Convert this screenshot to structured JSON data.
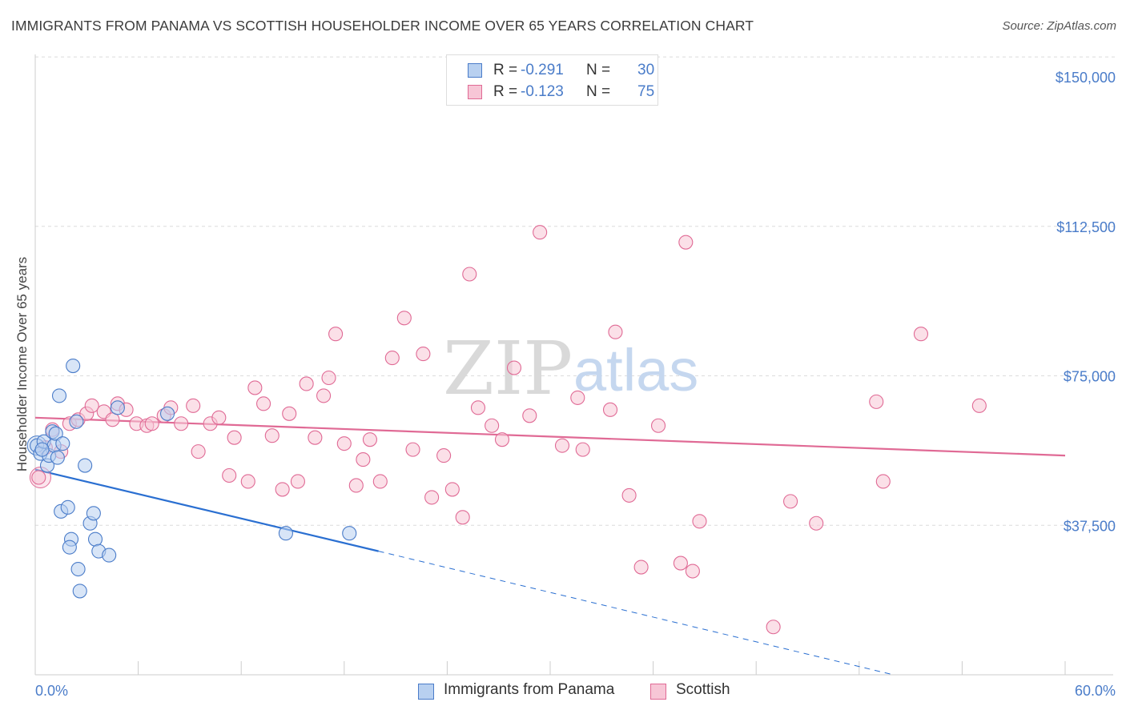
{
  "title": "IMMIGRANTS FROM PANAMA VS SCOTTISH HOUSEHOLDER INCOME OVER 65 YEARS CORRELATION CHART",
  "source": "Source: ZipAtlas.com",
  "watermark": {
    "part1": "ZIP",
    "part2": "atlas"
  },
  "colors": {
    "blue": "#4a7cc9",
    "blue_fill": "#b8d0f0",
    "blue_line": "#2a6fd1",
    "pink": "#e06a95",
    "pink_fill": "#f7c6d6",
    "pink_line": "#e06a95",
    "grid": "#dcdcdc"
  },
  "legend": {
    "r_label": "R =",
    "n_label": "N =",
    "series": [
      {
        "r": "-0.291",
        "n": "30"
      },
      {
        "r": "-0.123",
        "n": "75"
      }
    ]
  },
  "bottom_legend": [
    "Immigrants from Panama",
    "Scottish"
  ],
  "chart_data": {
    "type": "scatter",
    "title": "IMMIGRANTS FROM PANAMA VS SCOTTISH HOUSEHOLDER INCOME OVER 65 YEARS CORRELATION CHART",
    "xlabel": "",
    "ylabel": "Householder Income Over 65 years",
    "xlim": [
      0,
      60
    ],
    "ylim": [
      0,
      155000
    ],
    "x_tick_labels": [
      "0.0%",
      "60.0%"
    ],
    "y_ticks": [
      37500,
      75000,
      112500,
      150000
    ],
    "y_tick_labels": [
      "$37,500",
      "$75,000",
      "$112,500",
      "$150,000"
    ],
    "grid": true,
    "legend_position": "top-center",
    "series": [
      {
        "name": "Immigrants from Panama",
        "color": "#4a7cc9",
        "r": -0.291,
        "n": 30,
        "trend": {
          "x": [
            0,
            20
          ],
          "y": [
            51500,
            31000
          ],
          "dashed_to": [
            50,
            0
          ]
        },
        "points": [
          [
            0.1,
            57500
          ],
          [
            0.3,
            55500
          ],
          [
            0.5,
            58500
          ],
          [
            0.7,
            52500
          ],
          [
            0.8,
            55000
          ],
          [
            1.0,
            61000
          ],
          [
            1.1,
            57500
          ],
          [
            1.2,
            60500
          ],
          [
            1.3,
            54500
          ],
          [
            1.6,
            58000
          ],
          [
            1.4,
            70000
          ],
          [
            1.5,
            41000
          ],
          [
            1.9,
            42000
          ],
          [
            2.1,
            34000
          ],
          [
            2.0,
            32000
          ],
          [
            2.2,
            77500
          ],
          [
            2.5,
            26500
          ],
          [
            2.6,
            21000
          ],
          [
            2.9,
            52500
          ],
          [
            3.2,
            38000
          ],
          [
            3.4,
            40500
          ],
          [
            3.5,
            34000
          ],
          [
            3.7,
            31000
          ],
          [
            4.3,
            30000
          ],
          [
            4.8,
            67000
          ],
          [
            7.7,
            65500
          ],
          [
            14.6,
            35500
          ],
          [
            18.3,
            35500
          ],
          [
            0.4,
            56500
          ],
          [
            2.4,
            63500
          ]
        ]
      },
      {
        "name": "Scottish",
        "color": "#e06a95",
        "r": -0.123,
        "n": 75,
        "trend": {
          "x": [
            0,
            60
          ],
          "y": [
            64500,
            55000
          ]
        },
        "points": [
          [
            0.2,
            49500
          ],
          [
            0.6,
            57000
          ],
          [
            1.0,
            61500
          ],
          [
            1.5,
            56000
          ],
          [
            2.0,
            63000
          ],
          [
            2.5,
            64000
          ],
          [
            3.0,
            65500
          ],
          [
            3.3,
            67500
          ],
          [
            4.0,
            66000
          ],
          [
            4.5,
            64000
          ],
          [
            4.8,
            68000
          ],
          [
            5.3,
            66500
          ],
          [
            5.9,
            63000
          ],
          [
            6.5,
            62500
          ],
          [
            6.8,
            63000
          ],
          [
            7.5,
            65000
          ],
          [
            7.9,
            67000
          ],
          [
            8.5,
            63000
          ],
          [
            9.2,
            67500
          ],
          [
            9.5,
            56000
          ],
          [
            10.2,
            63000
          ],
          [
            10.7,
            64500
          ],
          [
            11.3,
            50000
          ],
          [
            11.6,
            59500
          ],
          [
            12.4,
            48500
          ],
          [
            12.8,
            72000
          ],
          [
            13.3,
            68000
          ],
          [
            13.8,
            60000
          ],
          [
            14.4,
            46500
          ],
          [
            14.8,
            65500
          ],
          [
            15.3,
            48500
          ],
          [
            15.8,
            73000
          ],
          [
            16.3,
            59500
          ],
          [
            16.8,
            70000
          ],
          [
            17.1,
            74500
          ],
          [
            17.5,
            85500
          ],
          [
            18.0,
            58000
          ],
          [
            18.7,
            47500
          ],
          [
            19.1,
            54000
          ],
          [
            19.5,
            59000
          ],
          [
            20.1,
            48500
          ],
          [
            20.8,
            79500
          ],
          [
            21.5,
            89500
          ],
          [
            22.0,
            56500
          ],
          [
            22.6,
            80500
          ],
          [
            23.1,
            44500
          ],
          [
            23.8,
            55000
          ],
          [
            24.3,
            46500
          ],
          [
            24.9,
            39500
          ],
          [
            25.3,
            100500
          ],
          [
            25.8,
            67000
          ],
          [
            26.6,
            62500
          ],
          [
            27.2,
            59000
          ],
          [
            27.9,
            77000
          ],
          [
            28.8,
            65000
          ],
          [
            29.4,
            111000
          ],
          [
            30.7,
            57500
          ],
          [
            31.6,
            69500
          ],
          [
            31.9,
            56500
          ],
          [
            33.5,
            66500
          ],
          [
            33.8,
            86000
          ],
          [
            34.6,
            45000
          ],
          [
            35.3,
            27000
          ],
          [
            36.3,
            62500
          ],
          [
            37.6,
            28000
          ],
          [
            37.9,
            108500
          ],
          [
            38.3,
            26000
          ],
          [
            38.7,
            38500
          ],
          [
            43.0,
            12000
          ],
          [
            44.0,
            43500
          ],
          [
            45.5,
            38000
          ],
          [
            49.0,
            68500
          ],
          [
            49.4,
            48500
          ],
          [
            51.6,
            85500
          ],
          [
            55.0,
            67500
          ]
        ]
      }
    ]
  }
}
